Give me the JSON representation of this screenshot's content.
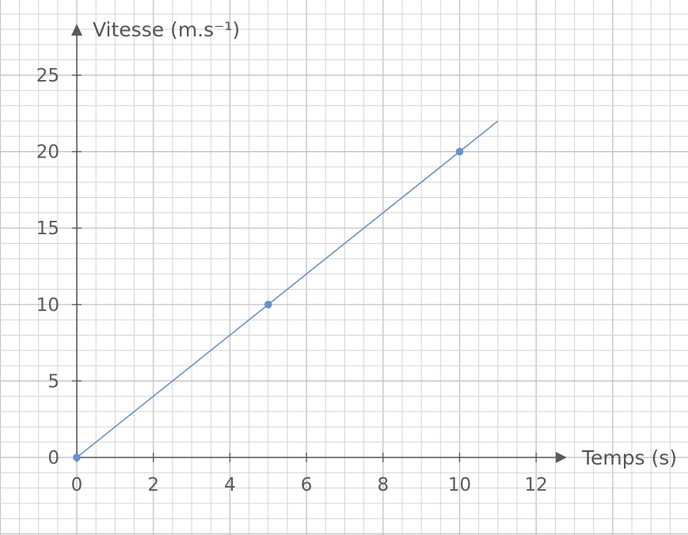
{
  "chart_data": {
    "type": "line",
    "xlabel": "Temps (s)",
    "ylabel": "Vitesse (m.s⁻¹)",
    "x_ticks": [
      "0",
      "2",
      "4",
      "6",
      "8",
      "10",
      "12"
    ],
    "y_ticks": [
      "0",
      "5",
      "10",
      "15",
      "20",
      "25"
    ],
    "xlim": [
      0,
      12
    ],
    "ylim": [
      0,
      25
    ],
    "grid": true,
    "series": [
      {
        "line": {
          "x": [
            0,
            11
          ],
          "y": [
            0,
            22
          ]
        },
        "points": [
          {
            "x": 0,
            "y": 0
          },
          {
            "x": 5,
            "y": 10
          },
          {
            "x": 10,
            "y": 20
          }
        ]
      }
    ],
    "colors": {
      "series": "#6a8fd0",
      "axis": "#5a5a5a",
      "grid": "#bdbdbd"
    }
  }
}
